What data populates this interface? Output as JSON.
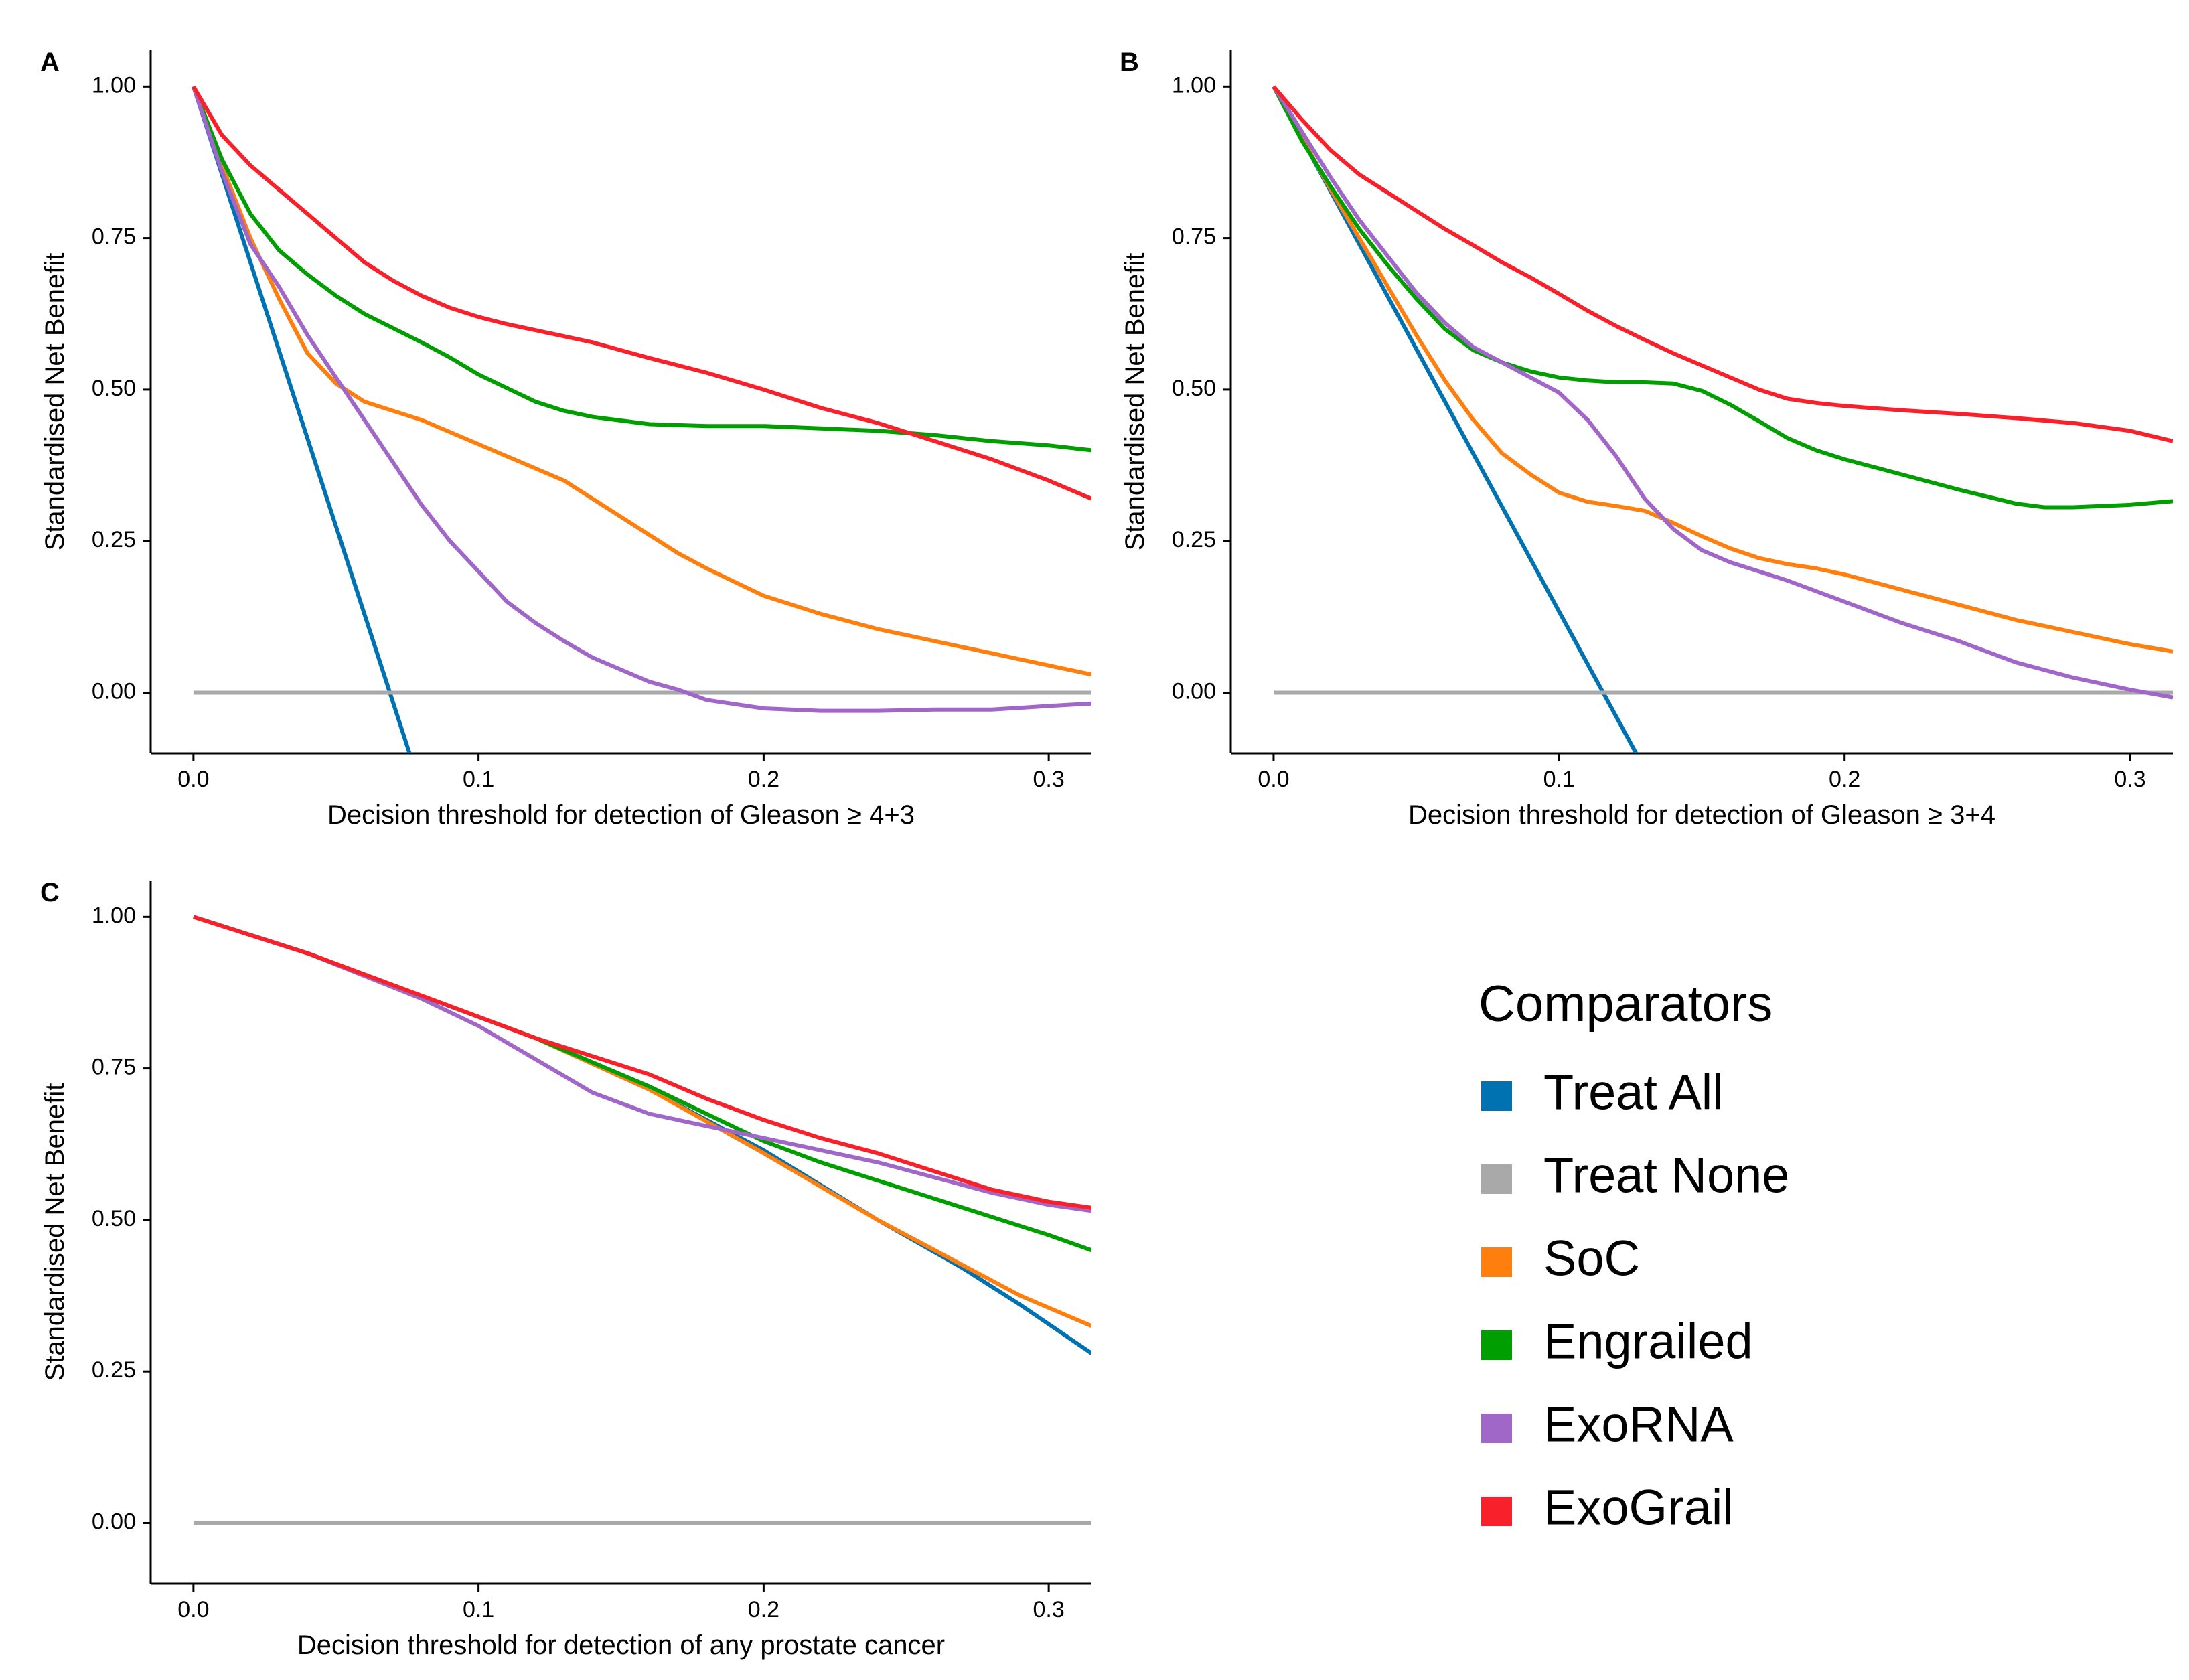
{
  "colors": {
    "treat_all": "#0072B2",
    "treat_none": "#A9A9A9",
    "soc": "#FF7F0E",
    "engrailed": "#009E00",
    "exorna": "#A066C8",
    "exograil": "#F8212B"
  },
  "legend": {
    "title": "Comparators",
    "items": [
      {
        "label": "Treat All",
        "color_key": "treat_all"
      },
      {
        "label": "Treat None",
        "color_key": "treat_none"
      },
      {
        "label": "SoC",
        "color_key": "soc"
      },
      {
        "label": "Engrailed",
        "color_key": "engrailed"
      },
      {
        "label": "ExoRNA",
        "color_key": "exorna"
      },
      {
        "label": "ExoGrail",
        "color_key": "exograil"
      }
    ]
  },
  "chart_data": [
    {
      "panel": "A",
      "type": "line",
      "xlabel": "Decision threshold for detection of Gleason ≥ 4+3",
      "ylabel": "Standardised Net Benefit",
      "xlim": [
        -0.015,
        0.315
      ],
      "ylim": [
        -0.1,
        1.06
      ],
      "xticks": [
        0,
        0.1,
        0.2,
        0.3
      ],
      "xtick_labels": [
        "0.0",
        "0.1",
        "0.2",
        "0.3"
      ],
      "yticks": [
        0,
        0.25,
        0.5,
        0.75,
        1.0
      ],
      "ytick_labels": [
        "0.00",
        "0.25",
        "0.50",
        "0.75",
        "1.00"
      ],
      "series": [
        {
          "name": "Treat All",
          "color_key": "treat_all",
          "x": [
            0,
            0.0758
          ],
          "y": [
            1.0,
            -0.1
          ]
        },
        {
          "name": "Treat None",
          "color_key": "treat_none",
          "x": [
            0,
            0.315
          ],
          "y": [
            0,
            0
          ]
        },
        {
          "name": "SoC",
          "color_key": "soc",
          "x": [
            0,
            0.01,
            0.02,
            0.03,
            0.04,
            0.05,
            0.06,
            0.08,
            0.09,
            0.1,
            0.12,
            0.13,
            0.15,
            0.17,
            0.18,
            0.2,
            0.22,
            0.24,
            0.26,
            0.28,
            0.3,
            0.315
          ],
          "y": [
            1.0,
            0.87,
            0.75,
            0.65,
            0.56,
            0.51,
            0.48,
            0.45,
            0.43,
            0.41,
            0.37,
            0.35,
            0.29,
            0.23,
            0.205,
            0.16,
            0.13,
            0.105,
            0.085,
            0.065,
            0.045,
            0.03
          ]
        },
        {
          "name": "Engrailed",
          "color_key": "engrailed",
          "x": [
            0,
            0.01,
            0.02,
            0.03,
            0.04,
            0.05,
            0.06,
            0.08,
            0.09,
            0.1,
            0.12,
            0.13,
            0.14,
            0.16,
            0.18,
            0.2,
            0.22,
            0.24,
            0.26,
            0.28,
            0.3,
            0.315
          ],
          "y": [
            1.0,
            0.88,
            0.79,
            0.73,
            0.69,
            0.655,
            0.625,
            0.578,
            0.553,
            0.525,
            0.48,
            0.465,
            0.455,
            0.443,
            0.44,
            0.44,
            0.436,
            0.432,
            0.425,
            0.415,
            0.408,
            0.4
          ]
        },
        {
          "name": "ExoRNA",
          "color_key": "exorna",
          "x": [
            0,
            0.01,
            0.02,
            0.03,
            0.04,
            0.05,
            0.06,
            0.07,
            0.08,
            0.09,
            0.1,
            0.11,
            0.12,
            0.13,
            0.14,
            0.15,
            0.16,
            0.17,
            0.18,
            0.2,
            0.22,
            0.24,
            0.26,
            0.28,
            0.3,
            0.315
          ],
          "y": [
            1.0,
            0.86,
            0.74,
            0.67,
            0.59,
            0.52,
            0.45,
            0.38,
            0.31,
            0.25,
            0.2,
            0.15,
            0.115,
            0.085,
            0.058,
            0.038,
            0.018,
            0.005,
            -0.012,
            -0.026,
            -0.03,
            -0.03,
            -0.028,
            -0.028,
            -0.022,
            -0.018
          ]
        },
        {
          "name": "ExoGrail",
          "color_key": "exograil",
          "x": [
            0,
            0.01,
            0.02,
            0.03,
            0.04,
            0.05,
            0.06,
            0.07,
            0.08,
            0.09,
            0.1,
            0.11,
            0.12,
            0.13,
            0.14,
            0.15,
            0.16,
            0.17,
            0.18,
            0.2,
            0.22,
            0.24,
            0.26,
            0.28,
            0.3,
            0.315
          ],
          "y": [
            1.0,
            0.92,
            0.87,
            0.83,
            0.79,
            0.75,
            0.71,
            0.68,
            0.655,
            0.635,
            0.62,
            0.608,
            0.598,
            0.588,
            0.578,
            0.565,
            0.552,
            0.54,
            0.528,
            0.5,
            0.47,
            0.445,
            0.415,
            0.385,
            0.35,
            0.32
          ]
        }
      ]
    },
    {
      "panel": "B",
      "type": "line",
      "xlabel": "Decision threshold for detection of Gleason ≥ 3+4",
      "ylabel": "Standardised Net Benefit",
      "xlim": [
        -0.015,
        0.315
      ],
      "ylim": [
        -0.1,
        1.06
      ],
      "xticks": [
        0,
        0.1,
        0.2,
        0.3
      ],
      "xtick_labels": [
        "0.0",
        "0.1",
        "0.2",
        "0.3"
      ],
      "yticks": [
        0,
        0.25,
        0.5,
        0.75,
        1.0
      ],
      "ytick_labels": [
        "0.00",
        "0.25",
        "0.50",
        "0.75",
        "1.00"
      ],
      "series": [
        {
          "name": "Treat All",
          "color_key": "treat_all",
          "x": [
            0,
            0.127
          ],
          "y": [
            1.0,
            -0.1
          ]
        },
        {
          "name": "Treat None",
          "color_key": "treat_none",
          "x": [
            0,
            0.315
          ],
          "y": [
            0,
            0
          ]
        },
        {
          "name": "SoC",
          "color_key": "soc",
          "x": [
            0,
            0.01,
            0.02,
            0.03,
            0.04,
            0.05,
            0.06,
            0.07,
            0.08,
            0.09,
            0.1,
            0.11,
            0.12,
            0.13,
            0.14,
            0.15,
            0.16,
            0.17,
            0.18,
            0.19,
            0.2,
            0.22,
            0.24,
            0.26,
            0.28,
            0.3,
            0.315
          ],
          "y": [
            1.0,
            0.915,
            0.83,
            0.75,
            0.67,
            0.59,
            0.515,
            0.45,
            0.395,
            0.36,
            0.33,
            0.315,
            0.308,
            0.3,
            0.28,
            0.258,
            0.238,
            0.222,
            0.212,
            0.205,
            0.195,
            0.17,
            0.145,
            0.12,
            0.1,
            0.08,
            0.068
          ]
        },
        {
          "name": "Engrailed",
          "color_key": "engrailed",
          "x": [
            0,
            0.01,
            0.02,
            0.03,
            0.04,
            0.05,
            0.06,
            0.07,
            0.08,
            0.09,
            0.1,
            0.11,
            0.12,
            0.13,
            0.14,
            0.15,
            0.16,
            0.17,
            0.18,
            0.19,
            0.2,
            0.22,
            0.24,
            0.26,
            0.27,
            0.28,
            0.3,
            0.315
          ],
          "y": [
            1.0,
            0.91,
            0.835,
            0.765,
            0.705,
            0.65,
            0.6,
            0.565,
            0.545,
            0.53,
            0.52,
            0.515,
            0.512,
            0.512,
            0.51,
            0.498,
            0.475,
            0.448,
            0.42,
            0.4,
            0.385,
            0.36,
            0.335,
            0.312,
            0.306,
            0.306,
            0.31,
            0.316
          ]
        },
        {
          "name": "ExoRNA",
          "color_key": "exorna",
          "x": [
            0,
            0.01,
            0.02,
            0.03,
            0.04,
            0.05,
            0.06,
            0.07,
            0.08,
            0.09,
            0.1,
            0.11,
            0.12,
            0.13,
            0.14,
            0.15,
            0.16,
            0.17,
            0.18,
            0.2,
            0.22,
            0.24,
            0.26,
            0.28,
            0.3,
            0.315
          ],
          "y": [
            1.0,
            0.925,
            0.85,
            0.78,
            0.72,
            0.66,
            0.61,
            0.57,
            0.545,
            0.52,
            0.495,
            0.45,
            0.39,
            0.32,
            0.27,
            0.235,
            0.215,
            0.2,
            0.185,
            0.15,
            0.115,
            0.085,
            0.05,
            0.025,
            0.005,
            -0.008
          ]
        },
        {
          "name": "ExoGrail",
          "color_key": "exograil",
          "x": [
            0,
            0.01,
            0.02,
            0.03,
            0.04,
            0.05,
            0.06,
            0.07,
            0.08,
            0.09,
            0.1,
            0.11,
            0.12,
            0.13,
            0.14,
            0.15,
            0.16,
            0.17,
            0.18,
            0.19,
            0.2,
            0.22,
            0.24,
            0.26,
            0.28,
            0.3,
            0.315
          ],
          "y": [
            1.0,
            0.945,
            0.895,
            0.855,
            0.825,
            0.795,
            0.765,
            0.738,
            0.71,
            0.685,
            0.658,
            0.63,
            0.605,
            0.582,
            0.56,
            0.54,
            0.52,
            0.5,
            0.485,
            0.478,
            0.473,
            0.466,
            0.46,
            0.453,
            0.445,
            0.432,
            0.415
          ]
        }
      ]
    },
    {
      "panel": "C",
      "type": "line",
      "xlabel": "Decision threshold for detection of any prostate cancer",
      "ylabel": "Standardised Net Benefit",
      "xlim": [
        -0.015,
        0.315
      ],
      "ylim": [
        -0.1,
        1.06
      ],
      "xticks": [
        0,
        0.1,
        0.2,
        0.3
      ],
      "xtick_labels": [
        "0.0",
        "0.1",
        "0.2",
        "0.3"
      ],
      "yticks": [
        0,
        0.25,
        0.5,
        0.75,
        1.0
      ],
      "ytick_labels": [
        "0.00",
        "0.25",
        "0.50",
        "0.75",
        "1.00"
      ],
      "series": [
        {
          "name": "Treat All",
          "color_key": "treat_all",
          "x": [
            0,
            0.04,
            0.08,
            0.12,
            0.16,
            0.2,
            0.24,
            0.27,
            0.29,
            0.315
          ],
          "y": [
            1.0,
            0.94,
            0.87,
            0.8,
            0.715,
            0.615,
            0.5,
            0.42,
            0.36,
            0.28
          ]
        },
        {
          "name": "Treat None",
          "color_key": "treat_none",
          "x": [
            0,
            0.315
          ],
          "y": [
            0,
            0
          ]
        },
        {
          "name": "SoC",
          "color_key": "soc",
          "x": [
            0,
            0.04,
            0.08,
            0.12,
            0.16,
            0.2,
            0.24,
            0.27,
            0.29,
            0.315
          ],
          "y": [
            1.0,
            0.94,
            0.87,
            0.8,
            0.715,
            0.61,
            0.5,
            0.425,
            0.375,
            0.325
          ]
        },
        {
          "name": "Engrailed",
          "color_key": "engrailed",
          "x": [
            0,
            0.04,
            0.08,
            0.12,
            0.16,
            0.18,
            0.2,
            0.22,
            0.24,
            0.26,
            0.28,
            0.3,
            0.315
          ],
          "y": [
            1.0,
            0.94,
            0.87,
            0.8,
            0.72,
            0.675,
            0.63,
            0.595,
            0.565,
            0.535,
            0.505,
            0.475,
            0.45
          ]
        },
        {
          "name": "ExoRNA",
          "color_key": "exorna",
          "x": [
            0,
            0.04,
            0.08,
            0.1,
            0.12,
            0.14,
            0.16,
            0.18,
            0.2,
            0.22,
            0.24,
            0.26,
            0.28,
            0.3,
            0.315
          ],
          "y": [
            1.0,
            0.94,
            0.865,
            0.82,
            0.765,
            0.71,
            0.675,
            0.655,
            0.635,
            0.615,
            0.595,
            0.57,
            0.545,
            0.525,
            0.515
          ]
        },
        {
          "name": "ExoGrail",
          "color_key": "exograil",
          "x": [
            0,
            0.04,
            0.08,
            0.1,
            0.12,
            0.14,
            0.16,
            0.17,
            0.18,
            0.2,
            0.22,
            0.24,
            0.26,
            0.28,
            0.3,
            0.315
          ],
          "y": [
            1.0,
            0.94,
            0.87,
            0.835,
            0.8,
            0.77,
            0.74,
            0.72,
            0.7,
            0.665,
            0.635,
            0.61,
            0.58,
            0.55,
            0.53,
            0.52
          ]
        }
      ]
    }
  ]
}
